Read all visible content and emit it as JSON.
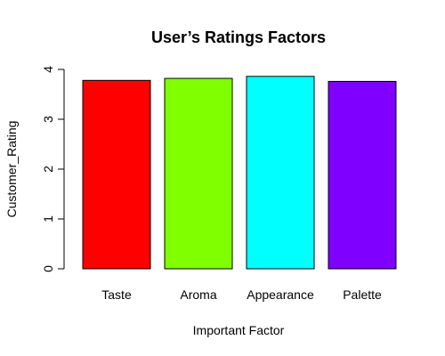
{
  "chart_data": {
    "type": "bar",
    "title": "User’s Ratings Factors",
    "xlabel": "Important Factor",
    "ylabel": "Customer_Rating",
    "categories": [
      "Taste",
      "Aroma",
      "Appearance",
      "Palette"
    ],
    "values": [
      3.78,
      3.82,
      3.86,
      3.76
    ],
    "colors": [
      "#ff0000",
      "#80ff00",
      "#00ffff",
      "#8000ff"
    ],
    "ylim": [
      0,
      4
    ],
    "yticks": [
      "0",
      "1",
      "2",
      "3",
      "4"
    ],
    "grid": false,
    "legend": "none"
  }
}
